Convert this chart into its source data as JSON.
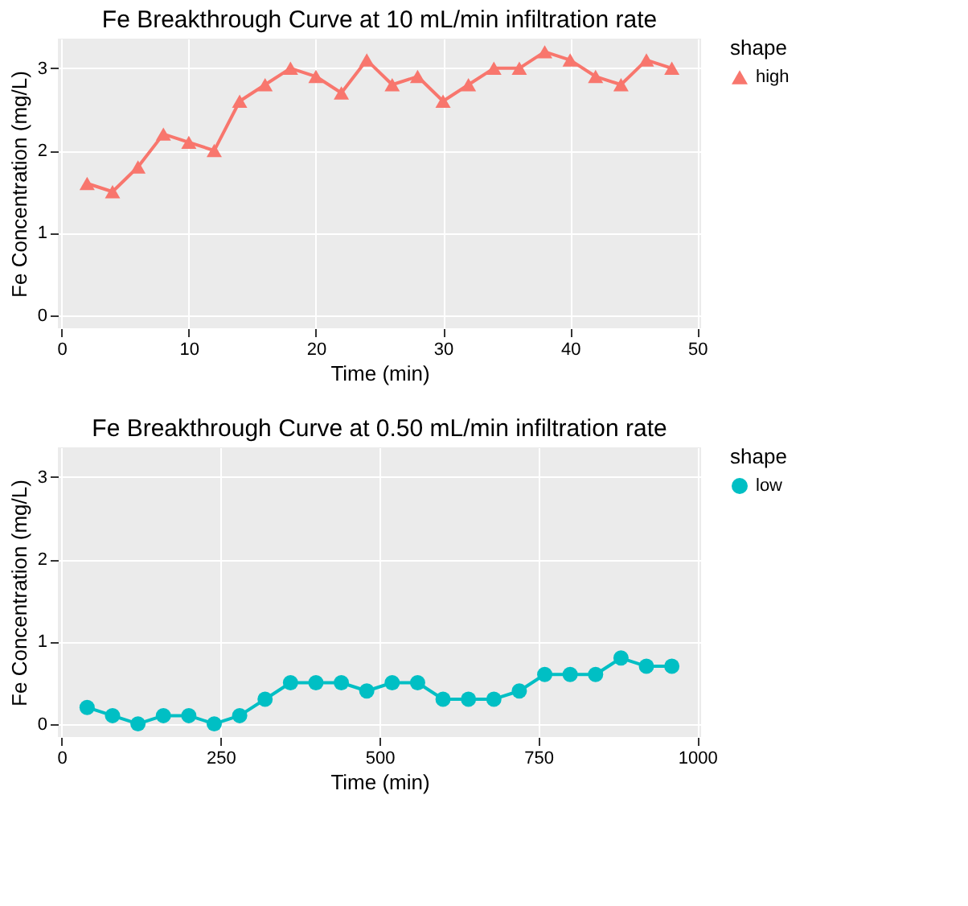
{
  "chart_data": [
    {
      "type": "line",
      "title": "Fe Breakthrough Curve at 10 mL/min infiltration rate",
      "xlabel": "Time (min)",
      "ylabel": "Fe Concentration (mg/L)",
      "legend_title": "shape",
      "x": [
        2,
        4,
        6,
        8,
        10,
        12,
        14,
        16,
        18,
        20,
        22,
        24,
        26,
        28,
        30,
        32,
        34,
        36,
        38,
        40,
        42,
        44,
        46,
        48
      ],
      "series": [
        {
          "name": "high",
          "color": "#f8766d",
          "values": [
            1.6,
            1.5,
            1.8,
            2.2,
            2.1,
            2.0,
            2.6,
            2.8,
            3.0,
            2.9,
            2.7,
            3.1,
            2.8,
            2.9,
            2.6,
            2.8,
            3.0,
            3.0,
            3.2,
            3.1,
            2.9,
            2.8,
            3.1,
            3.0
          ]
        }
      ],
      "xlim": [
        -0.3,
        50.3
      ],
      "xticks": [
        0,
        10,
        20,
        30,
        40,
        50
      ],
      "ylim": [
        -0.16,
        3.36
      ],
      "yticks": [
        0,
        1,
        2,
        3
      ],
      "marker": "triangle",
      "line_style": "solid",
      "grid": true,
      "legend": "right"
    },
    {
      "type": "line",
      "title": "Fe Breakthrough Curve at 0.50 mL/min infiltration rate",
      "xlabel": "Time (min)",
      "ylabel": "Fe Concentration (mg/L)",
      "legend_title": "shape",
      "x": [
        40,
        80,
        120,
        160,
        200,
        240,
        280,
        320,
        360,
        400,
        440,
        480,
        520,
        560,
        600,
        640,
        680,
        720,
        760,
        800,
        840,
        880,
        920,
        960
      ],
      "series": [
        {
          "name": "low",
          "color": "#00bfc4",
          "values": [
            0.2,
            0.1,
            0.0,
            0.1,
            0.1,
            0.0,
            0.1,
            0.3,
            0.5,
            0.5,
            0.5,
            0.4,
            0.5,
            0.5,
            0.3,
            0.3,
            0.3,
            0.4,
            0.6,
            0.6,
            0.6,
            0.8,
            0.7,
            0.7
          ]
        }
      ],
      "xlim": [
        -6,
        1006
      ],
      "xticks": [
        0,
        250,
        500,
        750,
        1000
      ],
      "ylim": [
        -0.16,
        3.36
      ],
      "yticks": [
        0,
        1,
        2,
        3
      ],
      "marker": "circle",
      "line_style": "solid",
      "grid": true,
      "legend": "right"
    }
  ]
}
